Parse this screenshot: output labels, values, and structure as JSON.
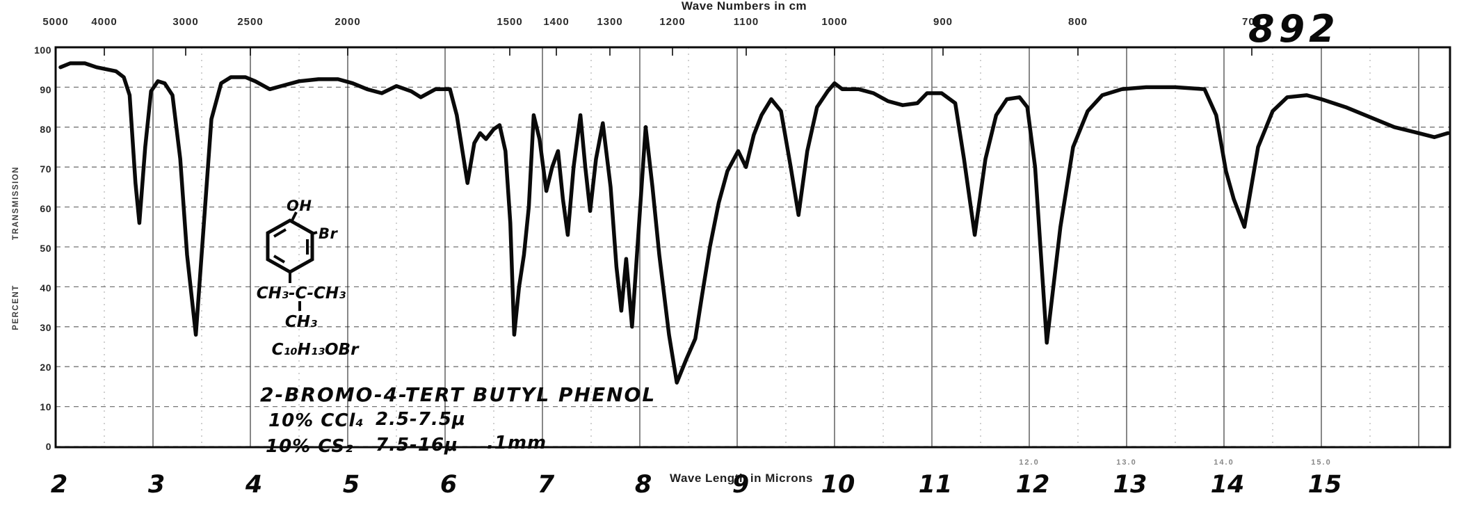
{
  "header": {
    "spectrum_number": "892"
  },
  "axes": {
    "top": {
      "title": "Wave Numbers in cm",
      "labels": [
        "5000",
        "4000",
        "3000",
        "2500",
        "2000",
        "1500",
        "1400",
        "1300",
        "1200",
        "1100",
        "1000",
        "900",
        "800",
        "700"
      ]
    },
    "left": {
      "label_upper": "TRANSMISSION",
      "label_lower": "PERCENT",
      "labels": [
        "100",
        "90",
        "80",
        "70",
        "60",
        "50",
        "40",
        "30",
        "20",
        "10",
        "0"
      ]
    },
    "bottom": {
      "title": "Wave Length in Microns",
      "microns": [
        "2",
        "3",
        "4",
        "5",
        "6",
        "7",
        "8",
        "9",
        "10",
        "11",
        "12",
        "13",
        "14",
        "15"
      ],
      "printed_labels": [
        "12.0",
        "13.0",
        "14.0",
        "15.0"
      ]
    }
  },
  "annotations": {
    "structure": {
      "oh": "OH",
      "br": "Br",
      "tbu": "CH₃-C-CH₃",
      "ch3": "CH₃",
      "formula": "C₁₀H₁₃OBr"
    },
    "compound": "2-BROMO-4-TERT BUTYL PHENOL",
    "solvent1": "10% CCl₄",
    "range1": "2.5-7.5μ",
    "solvent2": "10% CS₂",
    "range2": "7.5-16μ",
    "cell": ".1mm"
  },
  "chart_data": {
    "type": "line",
    "title": "Infrared spectrum of 2-bromo-4-tert-butylphenol (spectrum no. 892)",
    "xlabel": "Wave Length in Microns",
    "ylabel": "Percent Transmission",
    "x_unit": "micron",
    "xlim": [
      2,
      16.3
    ],
    "ylim": [
      0,
      100
    ],
    "grid": true,
    "top_axis": {
      "label": "Wave Numbers in cm",
      "tick_values": [
        5000,
        4000,
        3000,
        2500,
        2000,
        1500,
        1400,
        1300,
        1200,
        1100,
        1000,
        900,
        800,
        700
      ]
    },
    "points": [
      [
        2.05,
        95
      ],
      [
        2.15,
        96
      ],
      [
        2.3,
        96
      ],
      [
        2.42,
        95
      ],
      [
        2.52,
        94.5
      ],
      [
        2.62,
        94
      ],
      [
        2.7,
        92.5
      ],
      [
        2.76,
        88
      ],
      [
        2.82,
        66
      ],
      [
        2.86,
        56
      ],
      [
        2.92,
        75
      ],
      [
        2.98,
        89
      ],
      [
        3.05,
        91.5
      ],
      [
        3.12,
        91
      ],
      [
        3.2,
        88
      ],
      [
        3.28,
        72
      ],
      [
        3.35,
        48
      ],
      [
        3.44,
        28
      ],
      [
        3.52,
        55
      ],
      [
        3.6,
        82
      ],
      [
        3.7,
        91
      ],
      [
        3.8,
        92.5
      ],
      [
        3.95,
        92.5
      ],
      [
        4.05,
        91.5
      ],
      [
        4.2,
        89.5
      ],
      [
        4.35,
        90.5
      ],
      [
        4.5,
        91.5
      ],
      [
        4.7,
        92
      ],
      [
        4.9,
        92
      ],
      [
        5.05,
        91
      ],
      [
        5.2,
        89.5
      ],
      [
        5.35,
        88.5
      ],
      [
        5.5,
        90.3
      ],
      [
        5.65,
        89
      ],
      [
        5.75,
        87.5
      ],
      [
        5.9,
        89.5
      ],
      [
        6.05,
        89.5
      ],
      [
        6.12,
        83
      ],
      [
        6.23,
        66
      ],
      [
        6.3,
        76
      ],
      [
        6.36,
        78.5
      ],
      [
        6.42,
        77
      ],
      [
        6.5,
        79.5
      ],
      [
        6.56,
        80.5
      ],
      [
        6.62,
        74
      ],
      [
        6.67,
        56
      ],
      [
        6.71,
        28
      ],
      [
        6.76,
        40
      ],
      [
        6.81,
        48
      ],
      [
        6.86,
        60
      ],
      [
        6.91,
        83
      ],
      [
        6.97,
        77
      ],
      [
        7.04,
        64
      ],
      [
        7.1,
        70
      ],
      [
        7.16,
        74
      ],
      [
        7.21,
        62
      ],
      [
        7.26,
        53
      ],
      [
        7.32,
        70
      ],
      [
        7.39,
        83
      ],
      [
        7.44,
        70
      ],
      [
        7.49,
        59
      ],
      [
        7.55,
        72
      ],
      [
        7.62,
        81
      ],
      [
        7.7,
        65
      ],
      [
        7.76,
        45
      ],
      [
        7.81,
        34
      ],
      [
        7.86,
        47
      ],
      [
        7.92,
        30
      ],
      [
        7.99,
        55
      ],
      [
        8.06,
        80
      ],
      [
        8.13,
        65
      ],
      [
        8.2,
        48
      ],
      [
        8.3,
        28
      ],
      [
        8.38,
        16
      ],
      [
        8.48,
        22
      ],
      [
        8.57,
        27
      ],
      [
        8.64,
        38
      ],
      [
        8.72,
        50
      ],
      [
        8.81,
        61
      ],
      [
        8.9,
        69
      ],
      [
        9.01,
        74
      ],
      [
        9.09,
        70
      ],
      [
        9.17,
        78
      ],
      [
        9.25,
        83
      ],
      [
        9.35,
        87
      ],
      [
        9.45,
        84
      ],
      [
        9.55,
        70
      ],
      [
        9.63,
        58
      ],
      [
        9.72,
        74
      ],
      [
        9.82,
        85
      ],
      [
        9.93,
        89
      ],
      [
        10.0,
        91
      ],
      [
        10.08,
        89.5
      ],
      [
        10.25,
        89.5
      ],
      [
        10.4,
        88.5
      ],
      [
        10.55,
        86.5
      ],
      [
        10.7,
        85.5
      ],
      [
        10.85,
        86
      ],
      [
        10.95,
        88.5
      ],
      [
        11.1,
        88.5
      ],
      [
        11.24,
        86
      ],
      [
        11.33,
        72
      ],
      [
        11.44,
        53
      ],
      [
        11.55,
        72
      ],
      [
        11.66,
        83
      ],
      [
        11.77,
        87
      ],
      [
        11.9,
        87.5
      ],
      [
        11.98,
        85
      ],
      [
        12.06,
        70
      ],
      [
        12.18,
        26
      ],
      [
        12.32,
        55
      ],
      [
        12.45,
        75
      ],
      [
        12.6,
        84
      ],
      [
        12.75,
        88
      ],
      [
        12.95,
        89.5
      ],
      [
        13.2,
        90
      ],
      [
        13.5,
        90
      ],
      [
        13.8,
        89.5
      ],
      [
        13.92,
        83
      ],
      [
        14.02,
        69
      ],
      [
        14.1,
        62
      ],
      [
        14.21,
        55
      ],
      [
        14.35,
        75
      ],
      [
        14.5,
        84
      ],
      [
        14.65,
        87.5
      ],
      [
        14.85,
        88
      ],
      [
        15.0,
        87
      ],
      [
        15.25,
        85
      ],
      [
        15.5,
        82.5
      ],
      [
        15.75,
        80
      ],
      [
        16.0,
        78.5
      ],
      [
        16.16,
        77.5
      ],
      [
        16.3,
        78.5
      ]
    ],
    "absorption_minima_microns": [
      {
        "micron": 2.86,
        "transmission": 56
      },
      {
        "micron": 3.44,
        "transmission": 28
      },
      {
        "micron": 6.23,
        "transmission": 66
      },
      {
        "micron": 6.71,
        "transmission": 28
      },
      {
        "micron": 7.04,
        "transmission": 64
      },
      {
        "micron": 7.26,
        "transmission": 53
      },
      {
        "micron": 7.49,
        "transmission": 59
      },
      {
        "micron": 7.81,
        "transmission": 34
      },
      {
        "micron": 7.92,
        "transmission": 30
      },
      {
        "micron": 8.38,
        "transmission": 16
      },
      {
        "micron": 9.63,
        "transmission": 58
      },
      {
        "micron": 10.7,
        "transmission": 85.5
      },
      {
        "micron": 11.44,
        "transmission": 53
      },
      {
        "micron": 12.18,
        "transmission": 26
      },
      {
        "micron": 14.21,
        "transmission": 55
      },
      {
        "micron": 16.16,
        "transmission": 77.5
      }
    ]
  }
}
